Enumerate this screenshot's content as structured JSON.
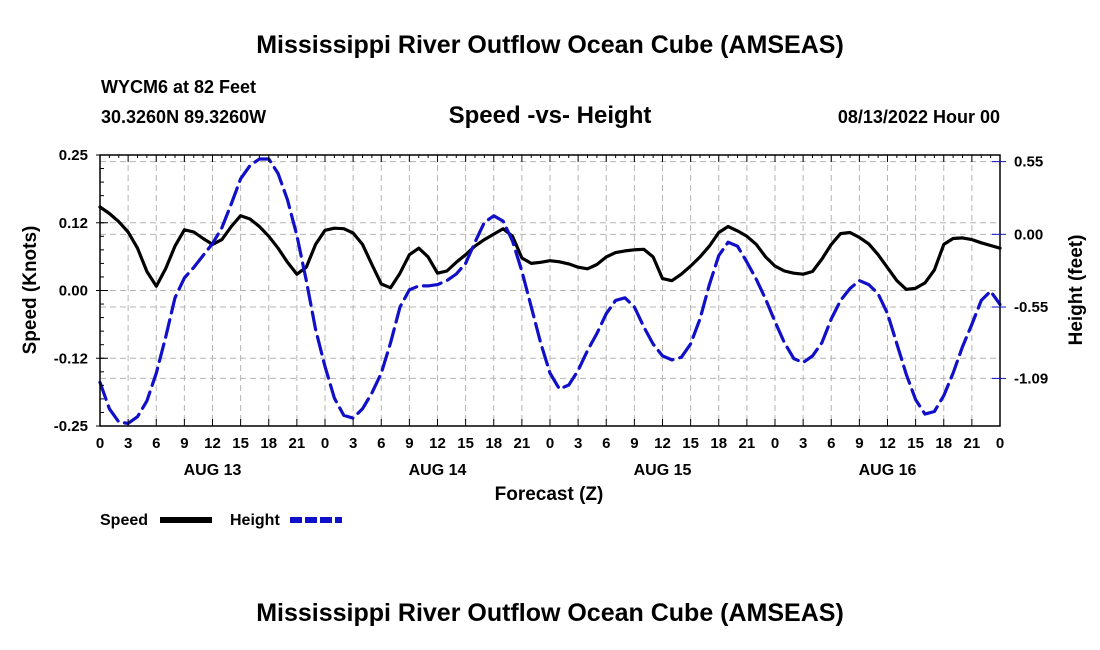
{
  "page": {
    "title": "Mississippi River Outflow Ocean Cube (AMSEAS)",
    "footer_title": "Mississippi River Outflow Ocean Cube (AMSEAS)",
    "station": "WYCM6 at 82 Feet",
    "coordinates": "30.3260N  89.3260W",
    "subtitle": "Speed -vs- Height",
    "datetime": "08/13/2022 Hour 00"
  },
  "chart_data": {
    "type": "line",
    "title": "Speed -vs- Height",
    "xlabel": "Forecast (Z)",
    "ylabel_left": "Speed (Knots)",
    "ylabel_right": "Height (feet)",
    "x_unit": "forecast hour",
    "xlim": [
      0,
      96
    ],
    "ylim_left": [
      -0.25,
      0.25
    ],
    "ylim_right": [
      -1.45,
      0.6
    ],
    "left_ticks": [
      {
        "value": 0.25,
        "label": "0.25"
      },
      {
        "value": 0.125,
        "label": "0.12"
      },
      {
        "value": 0.0,
        "label": "0.00"
      },
      {
        "value": -0.125,
        "label": "-0.12"
      },
      {
        "value": -0.25,
        "label": "-0.25"
      }
    ],
    "right_ticks": [
      {
        "value": 0.55,
        "label": "0.55"
      },
      {
        "value": 0.0,
        "label": "0.00"
      },
      {
        "value": -0.55,
        "label": "-0.55"
      },
      {
        "value": -1.09,
        "label": "-1.09"
      }
    ],
    "x_tick_labels": [
      "0",
      "3",
      "6",
      "9",
      "12",
      "15",
      "18",
      "21",
      "0",
      "3",
      "6",
      "9",
      "12",
      "15",
      "18",
      "21",
      "0",
      "3",
      "6",
      "9",
      "12",
      "15",
      "18",
      "21",
      "0",
      "3",
      "6",
      "9",
      "12",
      "15",
      "18",
      "21",
      "0"
    ],
    "day_labels": [
      {
        "hour": 12,
        "label": "AUG 13"
      },
      {
        "hour": 36,
        "label": "AUG 14"
      },
      {
        "hour": 60,
        "label": "AUG 15"
      },
      {
        "hour": 84,
        "label": "AUG 16"
      }
    ],
    "grid": true,
    "legend_position": "bottom-left",
    "series": [
      {
        "name": "Speed",
        "axis": "left",
        "color": "#000000",
        "style": "solid",
        "x": [
          0,
          1,
          2,
          3,
          4,
          5,
          6,
          7,
          8,
          9,
          10,
          11,
          12,
          13,
          14,
          15,
          16,
          17,
          18,
          19,
          20,
          21,
          22,
          23,
          24,
          25,
          26,
          27,
          28,
          29,
          30,
          31,
          32,
          33,
          34,
          35,
          36,
          37,
          38,
          39,
          40,
          41,
          42,
          43,
          44,
          45,
          46,
          47,
          48,
          49,
          50,
          51,
          52,
          53,
          54,
          55,
          56,
          57,
          58,
          59,
          60,
          61,
          62,
          63,
          64,
          65,
          66,
          67,
          68,
          69,
          70,
          71,
          72,
          73,
          74,
          75,
          76,
          77,
          78,
          79,
          80,
          81,
          82,
          83,
          84,
          85,
          86,
          87,
          88,
          89,
          90,
          91,
          92,
          93,
          94,
          95,
          96
        ],
        "values": [
          0.154,
          0.142,
          0.127,
          0.108,
          0.078,
          0.035,
          0.008,
          0.04,
          0.082,
          0.112,
          0.108,
          0.096,
          0.085,
          0.094,
          0.118,
          0.138,
          0.132,
          0.118,
          0.1,
          0.078,
          0.052,
          0.03,
          0.043,
          0.085,
          0.111,
          0.115,
          0.114,
          0.106,
          0.085,
          0.048,
          0.012,
          0.005,
          0.032,
          0.066,
          0.078,
          0.062,
          0.032,
          0.036,
          0.052,
          0.066,
          0.082,
          0.094,
          0.104,
          0.114,
          0.1,
          0.06,
          0.05,
          0.052,
          0.055,
          0.053,
          0.049,
          0.043,
          0.04,
          0.048,
          0.062,
          0.07,
          0.073,
          0.075,
          0.076,
          0.062,
          0.022,
          0.018,
          0.03,
          0.045,
          0.062,
          0.082,
          0.107,
          0.118,
          0.11,
          0.1,
          0.085,
          0.062,
          0.045,
          0.036,
          0.032,
          0.03,
          0.035,
          0.058,
          0.085,
          0.105,
          0.107,
          0.098,
          0.086,
          0.066,
          0.042,
          0.018,
          0.002,
          0.004,
          0.014,
          0.038,
          0.085,
          0.096,
          0.097,
          0.094,
          0.088,
          0.083,
          0.078
        ]
      },
      {
        "name": "Height",
        "axis": "right",
        "color": "#1010c8",
        "style": "dashed",
        "x": [
          0,
          1,
          2,
          3,
          4,
          5,
          6,
          7,
          8,
          9,
          10,
          11,
          12,
          13,
          14,
          15,
          16,
          17,
          18,
          19,
          20,
          21,
          22,
          23,
          24,
          25,
          26,
          27,
          28,
          29,
          30,
          31,
          32,
          33,
          34,
          35,
          36,
          37,
          38,
          39,
          40,
          41,
          42,
          43,
          44,
          45,
          46,
          47,
          48,
          49,
          50,
          51,
          52,
          53,
          54,
          55,
          56,
          57,
          58,
          59,
          60,
          61,
          62,
          63,
          64,
          65,
          66,
          67,
          68,
          69,
          70,
          71,
          72,
          73,
          74,
          75,
          76,
          77,
          78,
          79,
          80,
          81,
          82,
          83,
          84,
          85,
          86,
          87,
          88,
          89,
          90,
          91,
          92,
          93,
          94,
          95,
          96
        ],
        "values": [
          -1.12,
          -1.32,
          -1.42,
          -1.43,
          -1.38,
          -1.26,
          -1.05,
          -0.78,
          -0.48,
          -0.33,
          -0.25,
          -0.16,
          -0.07,
          0.05,
          0.23,
          0.42,
          0.52,
          0.57,
          0.57,
          0.46,
          0.26,
          -0.01,
          -0.35,
          -0.72,
          -1.0,
          -1.24,
          -1.37,
          -1.39,
          -1.32,
          -1.2,
          -1.05,
          -0.82,
          -0.55,
          -0.42,
          -0.39,
          -0.39,
          -0.38,
          -0.35,
          -0.3,
          -0.22,
          -0.06,
          0.09,
          0.14,
          0.1,
          -0.05,
          -0.28,
          -0.55,
          -0.82,
          -1.05,
          -1.17,
          -1.14,
          -1.03,
          -0.88,
          -0.75,
          -0.6,
          -0.5,
          -0.48,
          -0.55,
          -0.7,
          -0.83,
          -0.92,
          -0.95,
          -0.93,
          -0.83,
          -0.64,
          -0.38,
          -0.16,
          -0.06,
          -0.09,
          -0.21,
          -0.34,
          -0.49,
          -0.66,
          -0.82,
          -0.94,
          -0.97,
          -0.92,
          -0.82,
          -0.64,
          -0.5,
          -0.41,
          -0.35,
          -0.38,
          -0.45,
          -0.6,
          -0.83,
          -1.06,
          -1.25,
          -1.36,
          -1.34,
          -1.22,
          -1.05,
          -0.85,
          -0.68,
          -0.5,
          -0.43,
          -0.53
        ]
      }
    ]
  },
  "legend": {
    "speed_label": "Speed",
    "height_label": "Height"
  }
}
